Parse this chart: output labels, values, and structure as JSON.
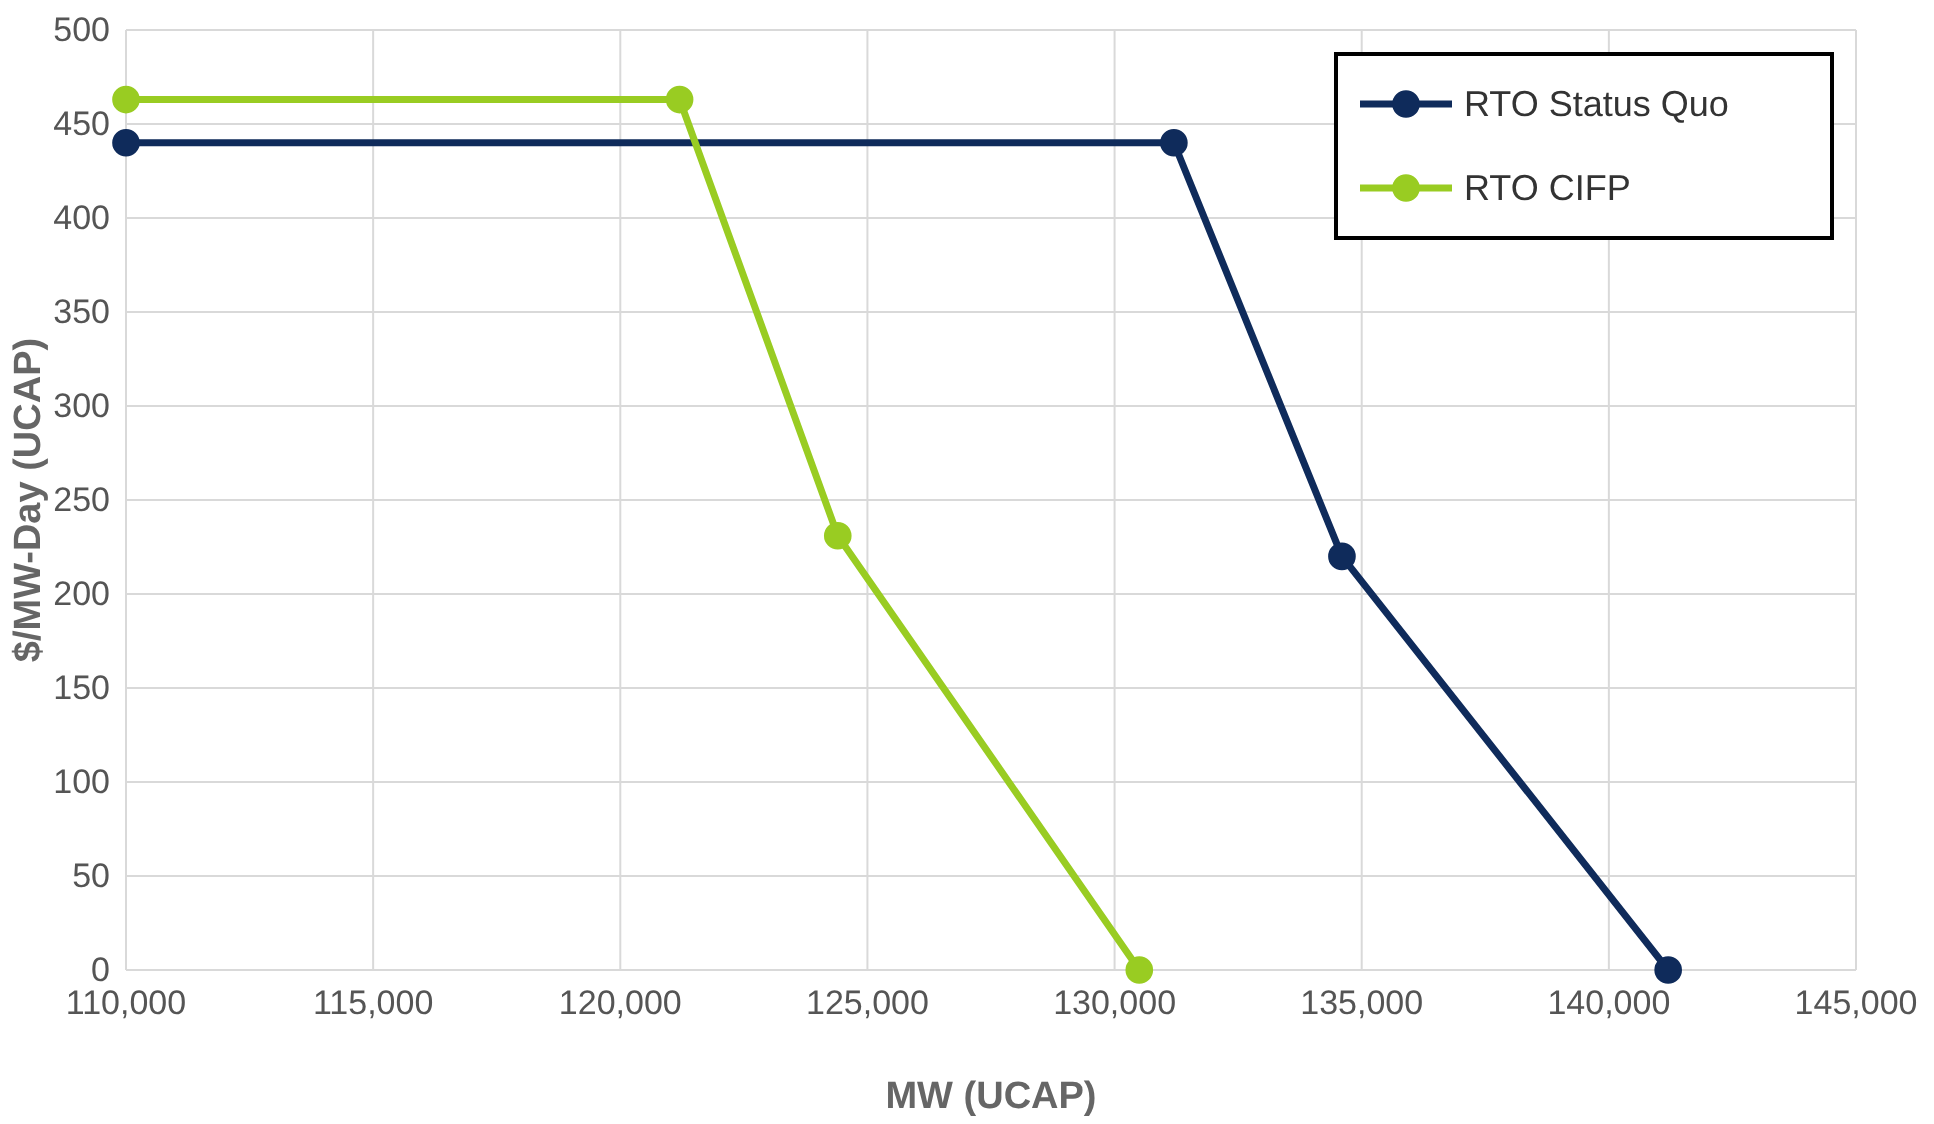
{
  "chart_data": {
    "type": "line",
    "xlabel": "MW (UCAP)",
    "ylabel": "$/MW-Day (UCAP)",
    "series": [
      {
        "name": "RTO Status Quo",
        "color": "#0f2b5b",
        "x": [
          110000,
          131200,
          134600,
          141200
        ],
        "values": [
          440,
          440,
          220,
          0
        ]
      },
      {
        "name": "RTO CIFP",
        "color": "#99cc22",
        "x": [
          110000,
          121200,
          124400,
          130500
        ],
        "values": [
          463,
          463,
          231,
          0
        ]
      }
    ],
    "xlim": [
      110000,
      145000
    ],
    "xticks": [
      {
        "value": 110000,
        "label": "110,000"
      },
      {
        "value": 115000,
        "label": "115,000"
      },
      {
        "value": 120000,
        "label": "120,000"
      },
      {
        "value": 125000,
        "label": "125,000"
      },
      {
        "value": 130000,
        "label": "130,000"
      },
      {
        "value": 135000,
        "label": "135,000"
      },
      {
        "value": 140000,
        "label": "140,000"
      },
      {
        "value": 145000,
        "label": "145,000"
      }
    ],
    "ylim": [
      0,
      500
    ],
    "yticks": [
      0,
      50,
      100,
      150,
      200,
      250,
      300,
      350,
      400,
      450,
      500
    ],
    "grid": true,
    "legend": "top right",
    "marker": "circle",
    "line_style": "solid"
  }
}
